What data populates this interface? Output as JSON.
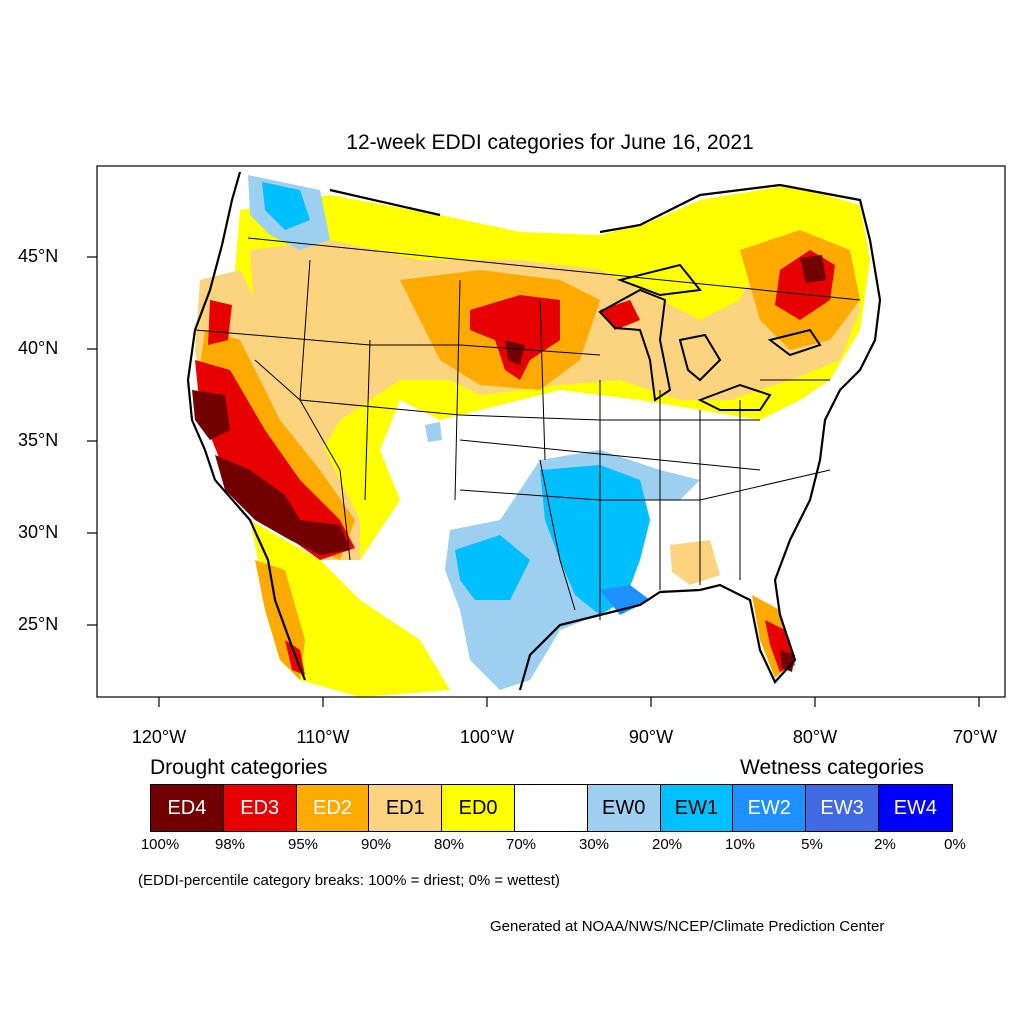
{
  "title": "12-week EDDI categories for June 16, 2021",
  "lat_labels": [
    "45°N",
    "40°N",
    "35°N",
    "30°N",
    "25°N"
  ],
  "lon_labels": [
    "120°W",
    "110°W",
    "100°W",
    "90°W",
    "80°W",
    "70°W"
  ],
  "legend": {
    "drought_heading": "Drought categories",
    "wetness_heading": "Wetness categories",
    "categories": [
      {
        "label": "ED4",
        "color": "#730000",
        "text_color": "#ffffff"
      },
      {
        "label": "ED3",
        "color": "#e60000",
        "text_color": "#ffffff"
      },
      {
        "label": "ED2",
        "color": "#ffaa00",
        "text_color": "#ffffff"
      },
      {
        "label": "ED1",
        "color": "#fcd37f",
        "text_color": "#000000"
      },
      {
        "label": "ED0",
        "color": "#ffff00",
        "text_color": "#000000"
      },
      {
        "label": "",
        "color": "#ffffff",
        "text_color": "#000000"
      },
      {
        "label": "EW0",
        "color": "#9dd0f0",
        "text_color": "#000000"
      },
      {
        "label": "EW1",
        "color": "#00bfff",
        "text_color": "#000000"
      },
      {
        "label": "EW2",
        "color": "#1e90ff",
        "text_color": "#ffffff"
      },
      {
        "label": "EW3",
        "color": "#4169e1",
        "text_color": "#ffffff"
      },
      {
        "label": "EW4",
        "color": "#0000ff",
        "text_color": "#ffffff"
      }
    ],
    "percentiles": [
      "100%",
      "98%",
      "95%",
      "90%",
      "80%",
      "70%",
      "30%",
      "20%",
      "10%",
      "5%",
      "2%",
      "0%"
    ]
  },
  "note": "(EDDI-percentile category breaks: 100% = driest; 0% = wettest)",
  "credit": "Generated at NOAA/NWS/NCEP/Climate Prediction Center"
}
